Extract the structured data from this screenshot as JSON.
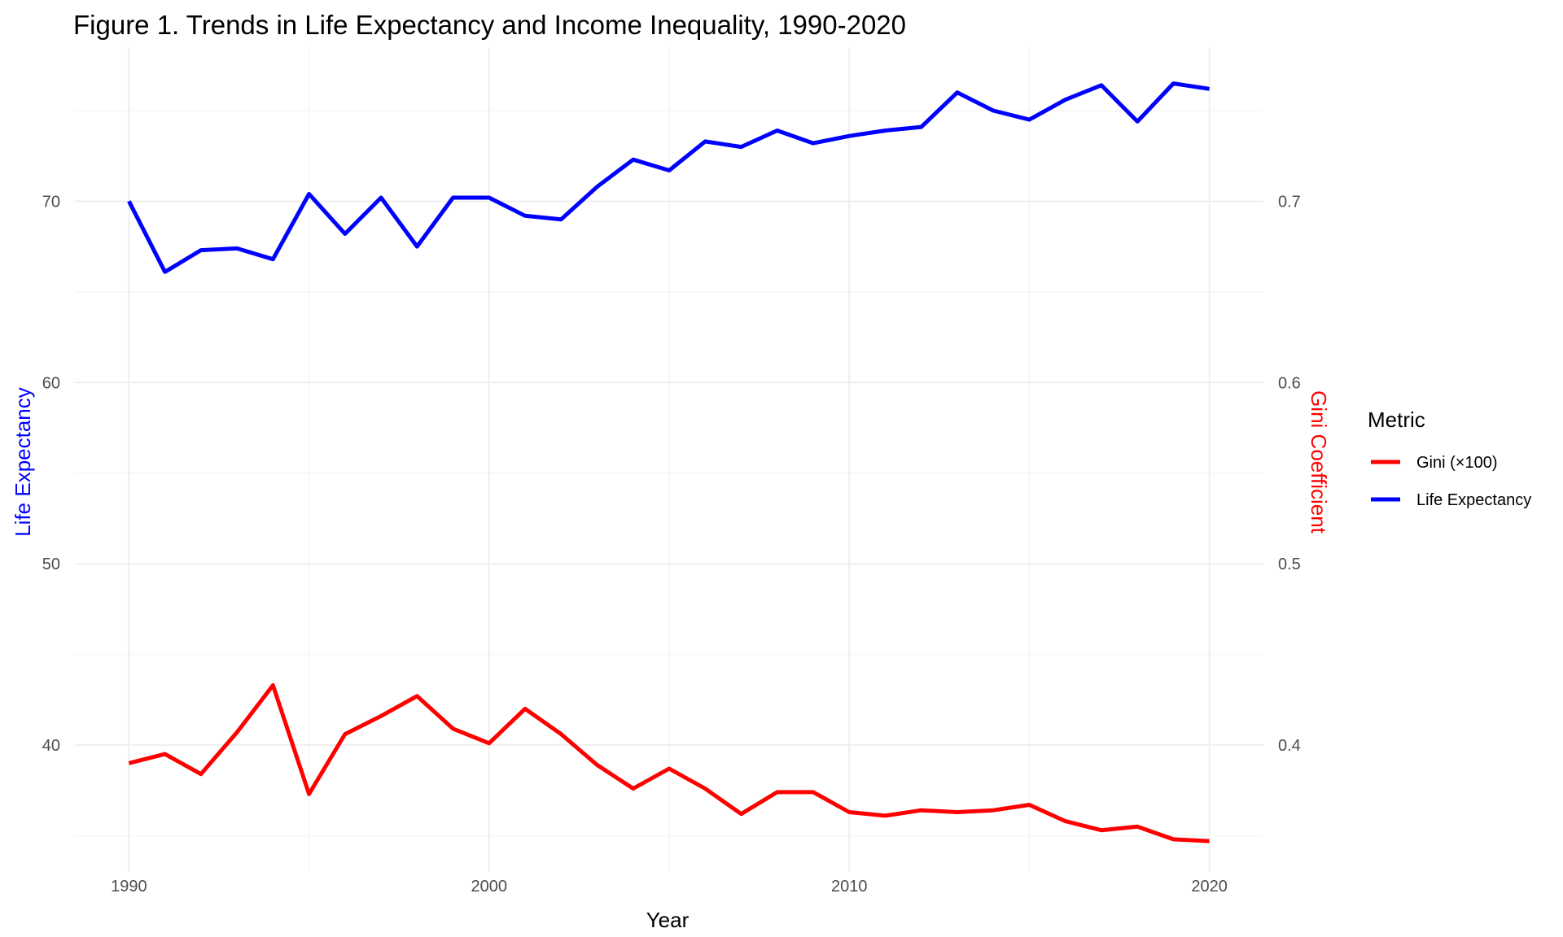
{
  "chart_data": {
    "type": "line",
    "title": "Figure 1. Trends in Life Expectancy and Income Inequality, 1990-2020",
    "xlabel": "Year",
    "ylabel_left": "Life Expectancy",
    "ylabel_right": "Gini Coefficient",
    "xlim": [
      1988.5,
      2021.5
    ],
    "ylim_left": [
      33.0,
      78.5
    ],
    "ylim_right": [
      0.33,
      0.785
    ],
    "right_axis_scale": 0.01,
    "x_ticks": [
      1990,
      2000,
      2010,
      2020
    ],
    "y_ticks_left": [
      40,
      50,
      60,
      70
    ],
    "y_ticks_right": [
      0.4,
      0.5,
      0.6,
      0.7
    ],
    "grid": true,
    "legend_position": "right",
    "legend_title": "Metric",
    "x": [
      1990,
      1991,
      1992,
      1993,
      1994,
      1995,
      1996,
      1997,
      1998,
      1999,
      2000,
      2001,
      2002,
      2003,
      2004,
      2005,
      2006,
      2007,
      2008,
      2009,
      2010,
      2011,
      2012,
      2013,
      2014,
      2015,
      2016,
      2017,
      2018,
      2019,
      2020
    ],
    "series": [
      {
        "name": "Gini (×100)",
        "color": "#ff0000",
        "values": [
          39.0,
          39.5,
          38.4,
          40.7,
          43.3,
          37.3,
          40.6,
          41.6,
          42.7,
          40.9,
          40.1,
          42.0,
          40.6,
          38.9,
          37.6,
          38.7,
          37.6,
          36.2,
          37.4,
          37.4,
          36.3,
          36.1,
          36.4,
          36.3,
          36.4,
          36.7,
          35.8,
          35.3,
          35.5,
          34.8,
          34.7
        ]
      },
      {
        "name": "Life Expectancy",
        "color": "#0000ff",
        "values": [
          70.0,
          66.1,
          67.3,
          67.4,
          66.8,
          70.4,
          68.2,
          70.2,
          67.5,
          70.2,
          70.2,
          69.2,
          69.0,
          70.8,
          72.3,
          71.7,
          73.3,
          73.0,
          73.9,
          73.2,
          73.6,
          73.9,
          74.1,
          76.0,
          75.0,
          74.5,
          75.6,
          76.4,
          74.4,
          76.5,
          76.2
        ]
      }
    ]
  }
}
